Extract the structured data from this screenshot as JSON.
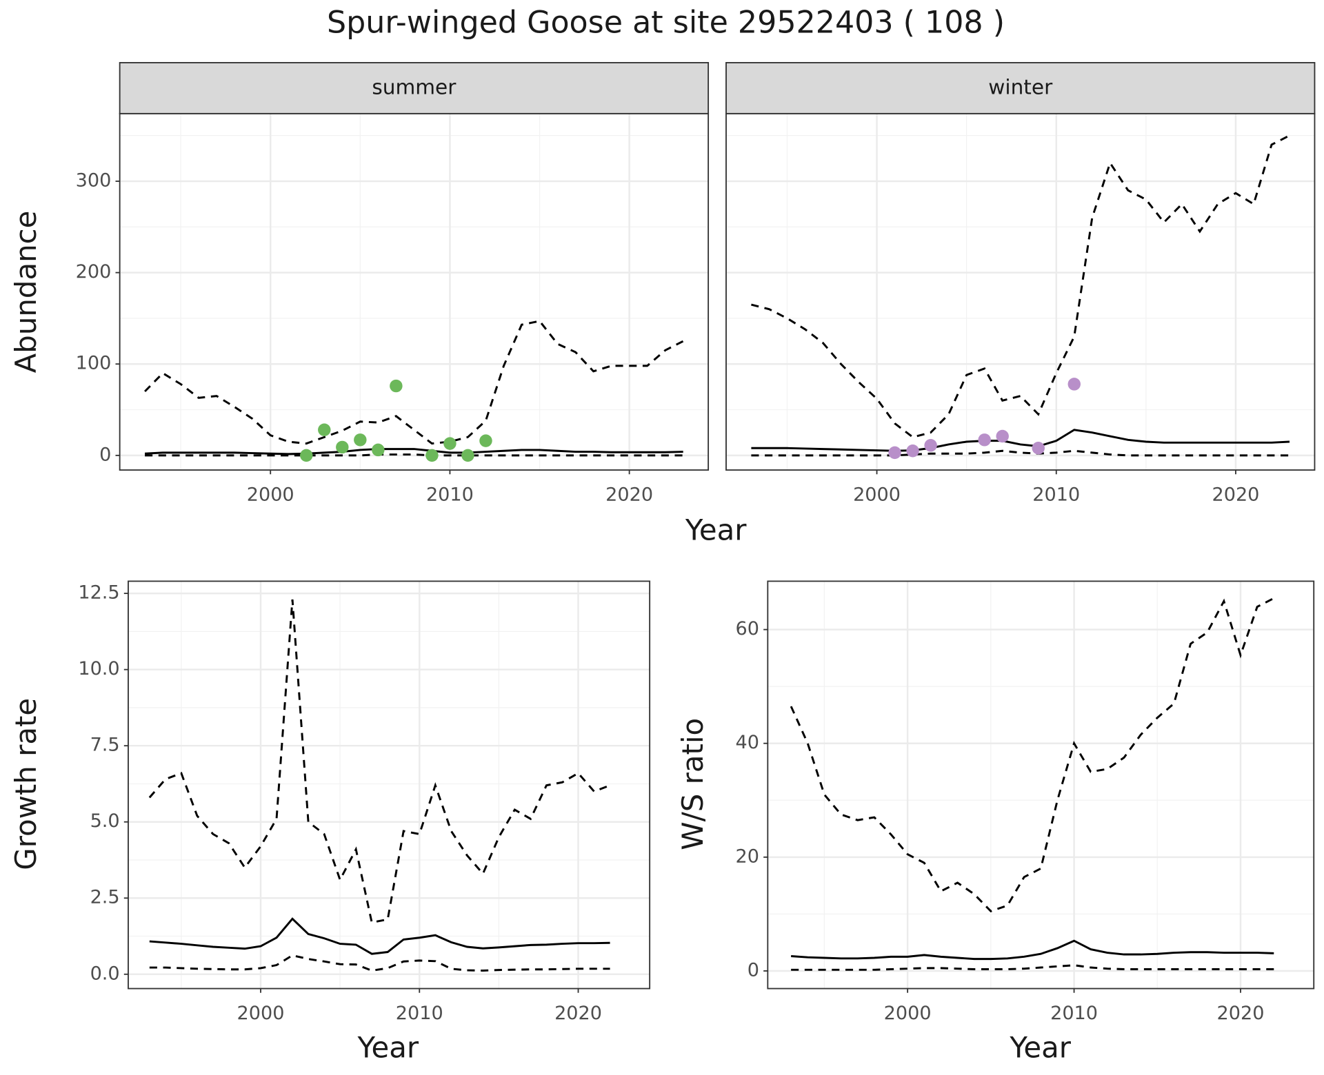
{
  "title": "Spur-winged Goose at site 29522403 ( 108 )",
  "chart_data": [
    {
      "type": "line",
      "facet": "summer",
      "ylabel": "Abundance",
      "xlabel": "Year",
      "show_ytick_labels": true,
      "x": [
        1993,
        1994,
        1995,
        1996,
        1997,
        1998,
        1999,
        2000,
        2001,
        2002,
        2003,
        2004,
        2005,
        2006,
        2007,
        2008,
        2009,
        2010,
        2011,
        2012,
        2013,
        2014,
        2015,
        2016,
        2017,
        2018,
        2019,
        2020,
        2021,
        2022,
        2023
      ],
      "series": [
        {
          "type": "line",
          "color": "#000000",
          "dash": "dashed",
          "values": [
            70,
            90,
            78,
            63,
            65,
            53,
            40,
            22,
            15,
            13,
            20,
            27,
            37,
            36,
            43,
            28,
            13,
            15,
            20,
            38,
            98,
            143,
            147,
            122,
            113,
            92,
            98,
            98,
            98,
            115,
            125
          ]
        },
        {
          "type": "line",
          "color": "#000000",
          "dash": "solid",
          "values": [
            2,
            3,
            3,
            3,
            3,
            3,
            2.5,
            2,
            1.5,
            2,
            3,
            4,
            6,
            7,
            7,
            7,
            5,
            3,
            3,
            4,
            5,
            6,
            6,
            5,
            4,
            4,
            3.5,
            3.5,
            3.5,
            3.5,
            4
          ]
        },
        {
          "type": "line",
          "color": "#000000",
          "dash": "dashed",
          "values": [
            0,
            0,
            0,
            0,
            0,
            0,
            0,
            0,
            0,
            0,
            0,
            0,
            0,
            1,
            1,
            1,
            0,
            0,
            0,
            0,
            0,
            0,
            0,
            0,
            0,
            0,
            0,
            0,
            0,
            0,
            0
          ]
        },
        {
          "type": "scatter",
          "color": "#6cb85a",
          "x": [
            2002,
            2003,
            2004,
            2005,
            2006,
            2007,
            2009,
            2010,
            2011,
            2012
          ],
          "values": [
            0,
            28,
            9,
            17,
            6,
            76,
            0,
            13,
            0,
            16
          ]
        }
      ],
      "xlim": [
        1991.6,
        2024.4
      ],
      "ylim": [
        -16,
        374
      ],
      "xticks": [
        2000,
        2010,
        2020
      ],
      "yticks": [
        0,
        100,
        200,
        300
      ],
      "grid": true
    },
    {
      "type": "line",
      "facet": "winter",
      "show_ytick_labels": false,
      "x": [
        1993,
        1994,
        1995,
        1996,
        1997,
        1998,
        1999,
        2000,
        2001,
        2002,
        2003,
        2004,
        2005,
        2006,
        2007,
        2008,
        2009,
        2010,
        2011,
        2012,
        2013,
        2014,
        2015,
        2016,
        2017,
        2018,
        2019,
        2020,
        2021,
        2022,
        2023
      ],
      "series": [
        {
          "type": "line",
          "color": "#000000",
          "dash": "dashed",
          "values": [
            165,
            160,
            150,
            138,
            123,
            100,
            80,
            62,
            35,
            20,
            25,
            45,
            88,
            95,
            60,
            65,
            45,
            90,
            130,
            260,
            320,
            290,
            280,
            255,
            275,
            245,
            275,
            287,
            275,
            340,
            350
          ]
        },
        {
          "type": "line",
          "color": "#000000",
          "dash": "solid",
          "values": [
            8,
            8,
            8,
            7.5,
            7,
            6.5,
            6,
            5.5,
            5,
            5.5,
            8,
            12,
            15,
            16,
            16,
            12,
            10,
            16,
            28,
            25,
            21,
            17,
            15,
            14,
            14,
            14,
            14,
            14,
            14,
            14,
            15
          ]
        },
        {
          "type": "line",
          "color": "#000000",
          "dash": "dashed",
          "values": [
            0,
            0,
            0,
            0,
            0,
            0,
            0,
            0,
            0,
            1,
            2,
            2,
            2,
            3,
            5,
            3,
            2,
            3,
            5,
            3,
            1,
            0,
            0,
            0,
            0,
            0,
            0,
            0,
            0,
            0,
            0
          ]
        },
        {
          "type": "scatter",
          "color": "#b88fc9",
          "x": [
            2001,
            2002,
            2003,
            2006,
            2007,
            2009,
            2011
          ],
          "values": [
            3,
            5,
            11,
            17,
            21,
            8,
            78
          ]
        }
      ],
      "xlim": [
        1991.6,
        2024.4
      ],
      "ylim": [
        -16,
        374
      ],
      "xticks": [
        2000,
        2010,
        2020
      ],
      "yticks": [
        0,
        100,
        200,
        300
      ],
      "grid": true
    },
    {
      "type": "line",
      "ylabel": "Growth rate",
      "xlabel": "Year",
      "show_ytick_labels": true,
      "x": [
        1993,
        1994,
        1995,
        1996,
        1997,
        1998,
        1999,
        2000,
        2001,
        2002,
        2003,
        2004,
        2005,
        2006,
        2007,
        2008,
        2009,
        2010,
        2011,
        2012,
        2013,
        2014,
        2015,
        2016,
        2017,
        2018,
        2019,
        2020,
        2021,
        2022
      ],
      "series": [
        {
          "type": "line",
          "color": "#000000",
          "dash": "dashed",
          "values": [
            5.8,
            6.4,
            6.6,
            5.2,
            4.6,
            4.3,
            3.5,
            4.2,
            5.1,
            12.3,
            5.0,
            4.6,
            3.1,
            4.1,
            1.7,
            1.8,
            4.7,
            4.6,
            6.2,
            4.7,
            3.9,
            3.3,
            4.5,
            5.4,
            5.1,
            6.2,
            6.3,
            6.6,
            6.0,
            6.2
          ]
        },
        {
          "type": "line",
          "color": "#000000",
          "dash": "solid",
          "values": [
            1.08,
            1.04,
            1.0,
            0.95,
            0.9,
            0.87,
            0.84,
            0.92,
            1.2,
            1.82,
            1.32,
            1.18,
            1.0,
            0.97,
            0.67,
            0.73,
            1.14,
            1.2,
            1.28,
            1.05,
            0.9,
            0.85,
            0.88,
            0.92,
            0.96,
            0.97,
            1.0,
            1.02,
            1.02,
            1.03
          ]
        },
        {
          "type": "line",
          "color": "#000000",
          "dash": "dashed",
          "values": [
            0.22,
            0.22,
            0.2,
            0.18,
            0.17,
            0.16,
            0.16,
            0.2,
            0.3,
            0.62,
            0.5,
            0.42,
            0.33,
            0.32,
            0.12,
            0.2,
            0.42,
            0.45,
            0.43,
            0.18,
            0.13,
            0.12,
            0.14,
            0.15,
            0.16,
            0.16,
            0.17,
            0.18,
            0.18,
            0.18
          ]
        }
      ],
      "xlim": [
        1991.66,
        2024.5
      ],
      "ylim": [
        -0.47,
        12.9
      ],
      "xticks": [
        2000,
        2010,
        2020
      ],
      "yticks": [
        {
          "value": 0,
          "label": "0.0"
        },
        2.5,
        {
          "value": 5,
          "label": "5.0"
        },
        7.5,
        {
          "value": 10,
          "label": "10.0"
        },
        12.5
      ],
      "grid": true
    },
    {
      "type": "line",
      "ylabel": "W/S ratio",
      "xlabel": "Year",
      "show_ytick_labels": true,
      "x": [
        1993,
        1994,
        1995,
        1996,
        1997,
        1998,
        1999,
        2000,
        2001,
        2002,
        2003,
        2004,
        2005,
        2006,
        2007,
        2008,
        2009,
        2010,
        2011,
        2012,
        2013,
        2014,
        2015,
        2016,
        2017,
        2018,
        2019,
        2020,
        2021,
        2022
      ],
      "series": [
        {
          "type": "line",
          "color": "#000000",
          "dash": "dashed",
          "values": [
            46.5,
            40,
            31,
            27.5,
            26.5,
            27,
            24,
            20.5,
            19,
            14,
            15.5,
            13.5,
            10.5,
            11.5,
            16.5,
            18,
            30,
            40,
            35,
            35.5,
            37.5,
            41.5,
            44.5,
            47,
            57.5,
            59.5,
            65,
            55.5,
            64,
            65.5
          ]
        },
        {
          "type": "line",
          "color": "#000000",
          "dash": "solid",
          "values": [
            2.6,
            2.4,
            2.3,
            2.2,
            2.2,
            2.3,
            2.5,
            2.5,
            2.8,
            2.5,
            2.3,
            2.1,
            2.1,
            2.2,
            2.5,
            3.0,
            4.0,
            5.3,
            3.8,
            3.2,
            2.9,
            2.9,
            3.0,
            3.2,
            3.3,
            3.3,
            3.2,
            3.2,
            3.2,
            3.1
          ]
        },
        {
          "type": "line",
          "color": "#000000",
          "dash": "dashed",
          "values": [
            0.2,
            0.2,
            0.2,
            0.2,
            0.2,
            0.2,
            0.3,
            0.4,
            0.5,
            0.5,
            0.4,
            0.3,
            0.3,
            0.3,
            0.4,
            0.6,
            0.8,
            1.0,
            0.6,
            0.4,
            0.3,
            0.3,
            0.3,
            0.3,
            0.3,
            0.3,
            0.3,
            0.3,
            0.3,
            0.3
          ]
        }
      ],
      "xlim": [
        1991.6,
        2024.4
      ],
      "ylim": [
        -3.1,
        68.5
      ],
      "xticks": [
        2000,
        2010,
        2020
      ],
      "yticks": [
        0,
        20,
        40,
        60
      ],
      "grid": true
    }
  ]
}
